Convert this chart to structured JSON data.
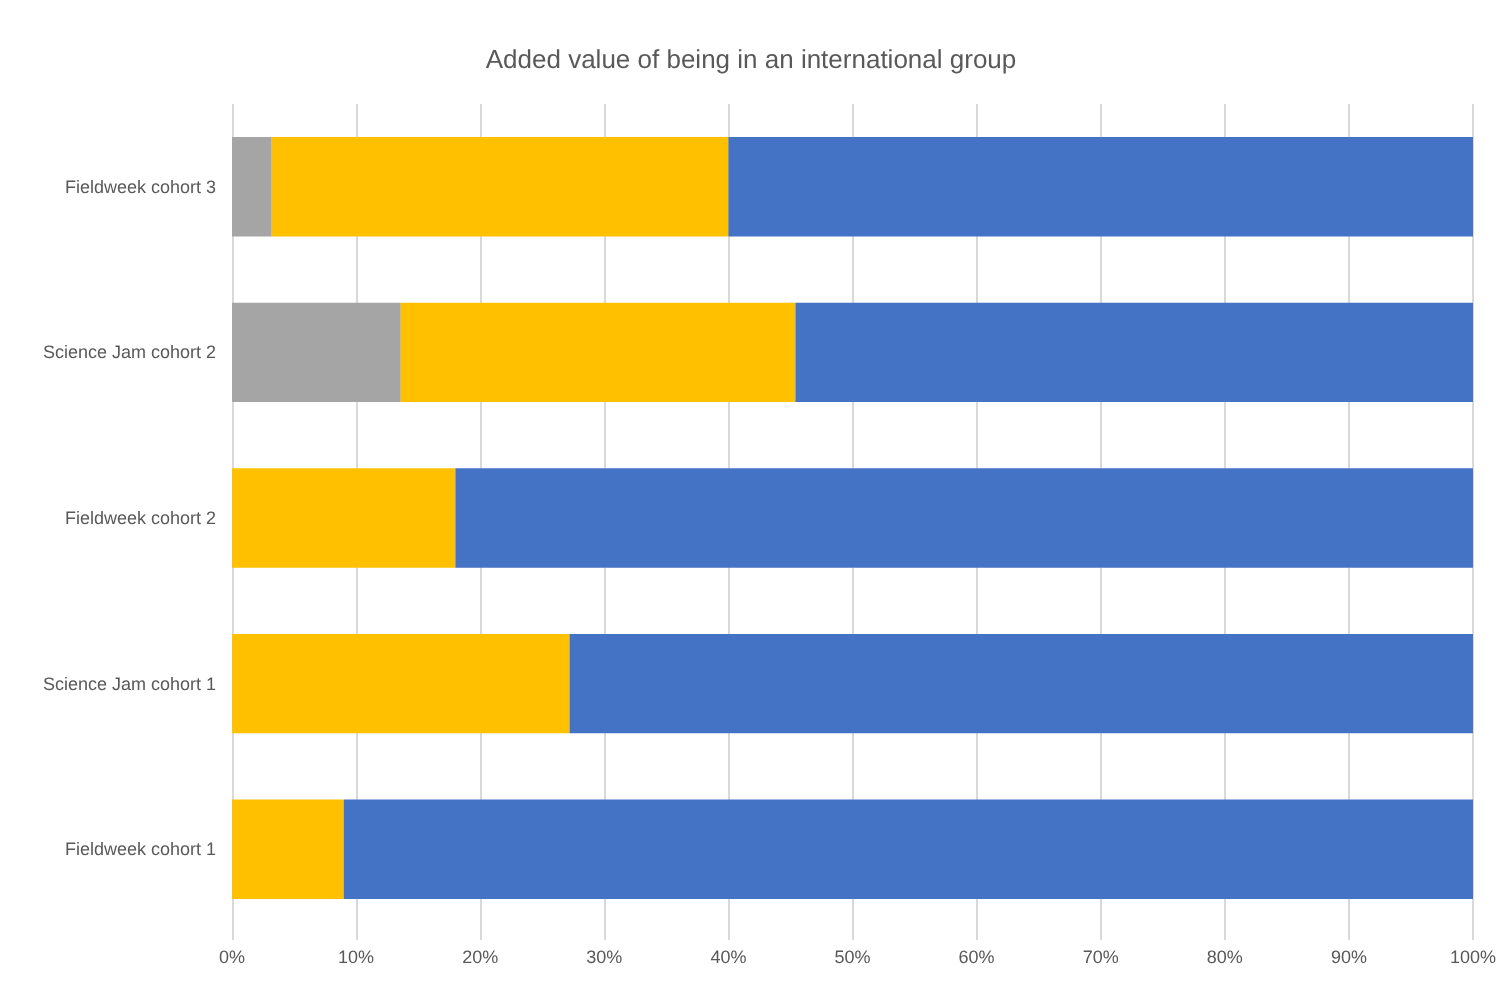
{
  "chart_data": {
    "type": "bar",
    "orientation": "horizontal",
    "stacked": true,
    "title": "Added value of being in an international group",
    "categories": [
      "Fieldweek cohort 3",
      "Science Jam cohort 2",
      "Fieldweek cohort 2",
      "Science Jam cohort 1",
      "Fieldweek cohort 1"
    ],
    "series": [
      {
        "color": "#a5a5a5",
        "values": [
          3.2,
          13.6,
          0,
          0,
          0
        ]
      },
      {
        "color": "#ffc000",
        "values": [
          36.8,
          31.8,
          18.0,
          27.2,
          9.0
        ]
      },
      {
        "color": "#4472c4",
        "values": [
          60.0,
          54.6,
          82.0,
          72.8,
          91.0
        ]
      }
    ],
    "xlim": [
      0,
      100
    ],
    "xticks": [
      {
        "value": 0,
        "label": "0%"
      },
      {
        "value": 10,
        "label": "10%"
      },
      {
        "value": 20,
        "label": "20%"
      },
      {
        "value": 30,
        "label": "30%"
      },
      {
        "value": 40,
        "label": "40%"
      },
      {
        "value": 50,
        "label": "50%"
      },
      {
        "value": 60,
        "label": "60%"
      },
      {
        "value": 70,
        "label": "70%"
      },
      {
        "value": 80,
        "label": "80%"
      },
      {
        "value": 90,
        "label": "90%"
      },
      {
        "value": 100,
        "label": "100%"
      }
    ],
    "grid": "x"
  }
}
